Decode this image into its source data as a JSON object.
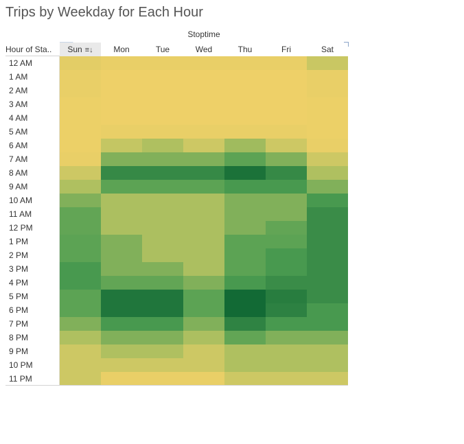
{
  "chart_data": {
    "type": "heatmap",
    "title": "Trips by Weekday for Each Hour",
    "column_group_label": "Stoptime",
    "row_header_label": "Hour of Sta..",
    "sorted_column": "Sun",
    "sort_glyph": "≡↓",
    "columns": [
      "Sun",
      "Mon",
      "Tue",
      "Wed",
      "Thu",
      "Fri",
      "Sat"
    ],
    "rows": [
      "12 AM",
      "1 AM",
      "2 AM",
      "3 AM",
      "4 AM",
      "5 AM",
      "6 AM",
      "7 AM",
      "8 AM",
      "9 AM",
      "10 AM",
      "11 AM",
      "12 PM",
      "1 PM",
      "2 PM",
      "3 PM",
      "4 PM",
      "5 PM",
      "6 PM",
      "7 PM",
      "8 PM",
      "9 PM",
      "10 PM",
      "11 PM"
    ],
    "values": [
      [
        0.08,
        0.05,
        0.05,
        0.05,
        0.05,
        0.05,
        0.22
      ],
      [
        0.05,
        0.02,
        0.02,
        0.02,
        0.02,
        0.02,
        0.05
      ],
      [
        0.05,
        0.02,
        0.02,
        0.02,
        0.02,
        0.02,
        0.05
      ],
      [
        0.03,
        0.02,
        0.02,
        0.02,
        0.02,
        0.02,
        0.03
      ],
      [
        0.03,
        0.02,
        0.02,
        0.02,
        0.02,
        0.02,
        0.03
      ],
      [
        0.03,
        0.05,
        0.05,
        0.05,
        0.05,
        0.05,
        0.03
      ],
      [
        0.03,
        0.25,
        0.35,
        0.2,
        0.4,
        0.2,
        0.05
      ],
      [
        0.05,
        0.5,
        0.5,
        0.5,
        0.62,
        0.5,
        0.2
      ],
      [
        0.2,
        0.8,
        0.8,
        0.8,
        0.95,
        0.8,
        0.35
      ],
      [
        0.35,
        0.62,
        0.62,
        0.62,
        0.7,
        0.7,
        0.5
      ],
      [
        0.5,
        0.36,
        0.36,
        0.36,
        0.5,
        0.5,
        0.7
      ],
      [
        0.6,
        0.36,
        0.36,
        0.36,
        0.5,
        0.5,
        0.78
      ],
      [
        0.6,
        0.36,
        0.36,
        0.36,
        0.5,
        0.6,
        0.78
      ],
      [
        0.62,
        0.5,
        0.36,
        0.36,
        0.62,
        0.62,
        0.78
      ],
      [
        0.62,
        0.5,
        0.36,
        0.36,
        0.62,
        0.7,
        0.78
      ],
      [
        0.7,
        0.5,
        0.5,
        0.36,
        0.62,
        0.7,
        0.78
      ],
      [
        0.7,
        0.6,
        0.6,
        0.5,
        0.7,
        0.78,
        0.78
      ],
      [
        0.62,
        0.92,
        0.92,
        0.62,
        1.0,
        0.88,
        0.78
      ],
      [
        0.62,
        0.92,
        0.92,
        0.62,
        1.0,
        0.85,
        0.7
      ],
      [
        0.5,
        0.7,
        0.7,
        0.5,
        0.84,
        0.7,
        0.7
      ],
      [
        0.35,
        0.5,
        0.5,
        0.36,
        0.6,
        0.5,
        0.5
      ],
      [
        0.2,
        0.35,
        0.35,
        0.2,
        0.35,
        0.35,
        0.35
      ],
      [
        0.2,
        0.2,
        0.2,
        0.2,
        0.35,
        0.35,
        0.35
      ],
      [
        0.2,
        0.05,
        0.05,
        0.05,
        0.2,
        0.2,
        0.2
      ]
    ],
    "color_scale": [
      "#f2d168",
      "#b4c261",
      "#4e9e52",
      "#126a35"
    ]
  }
}
